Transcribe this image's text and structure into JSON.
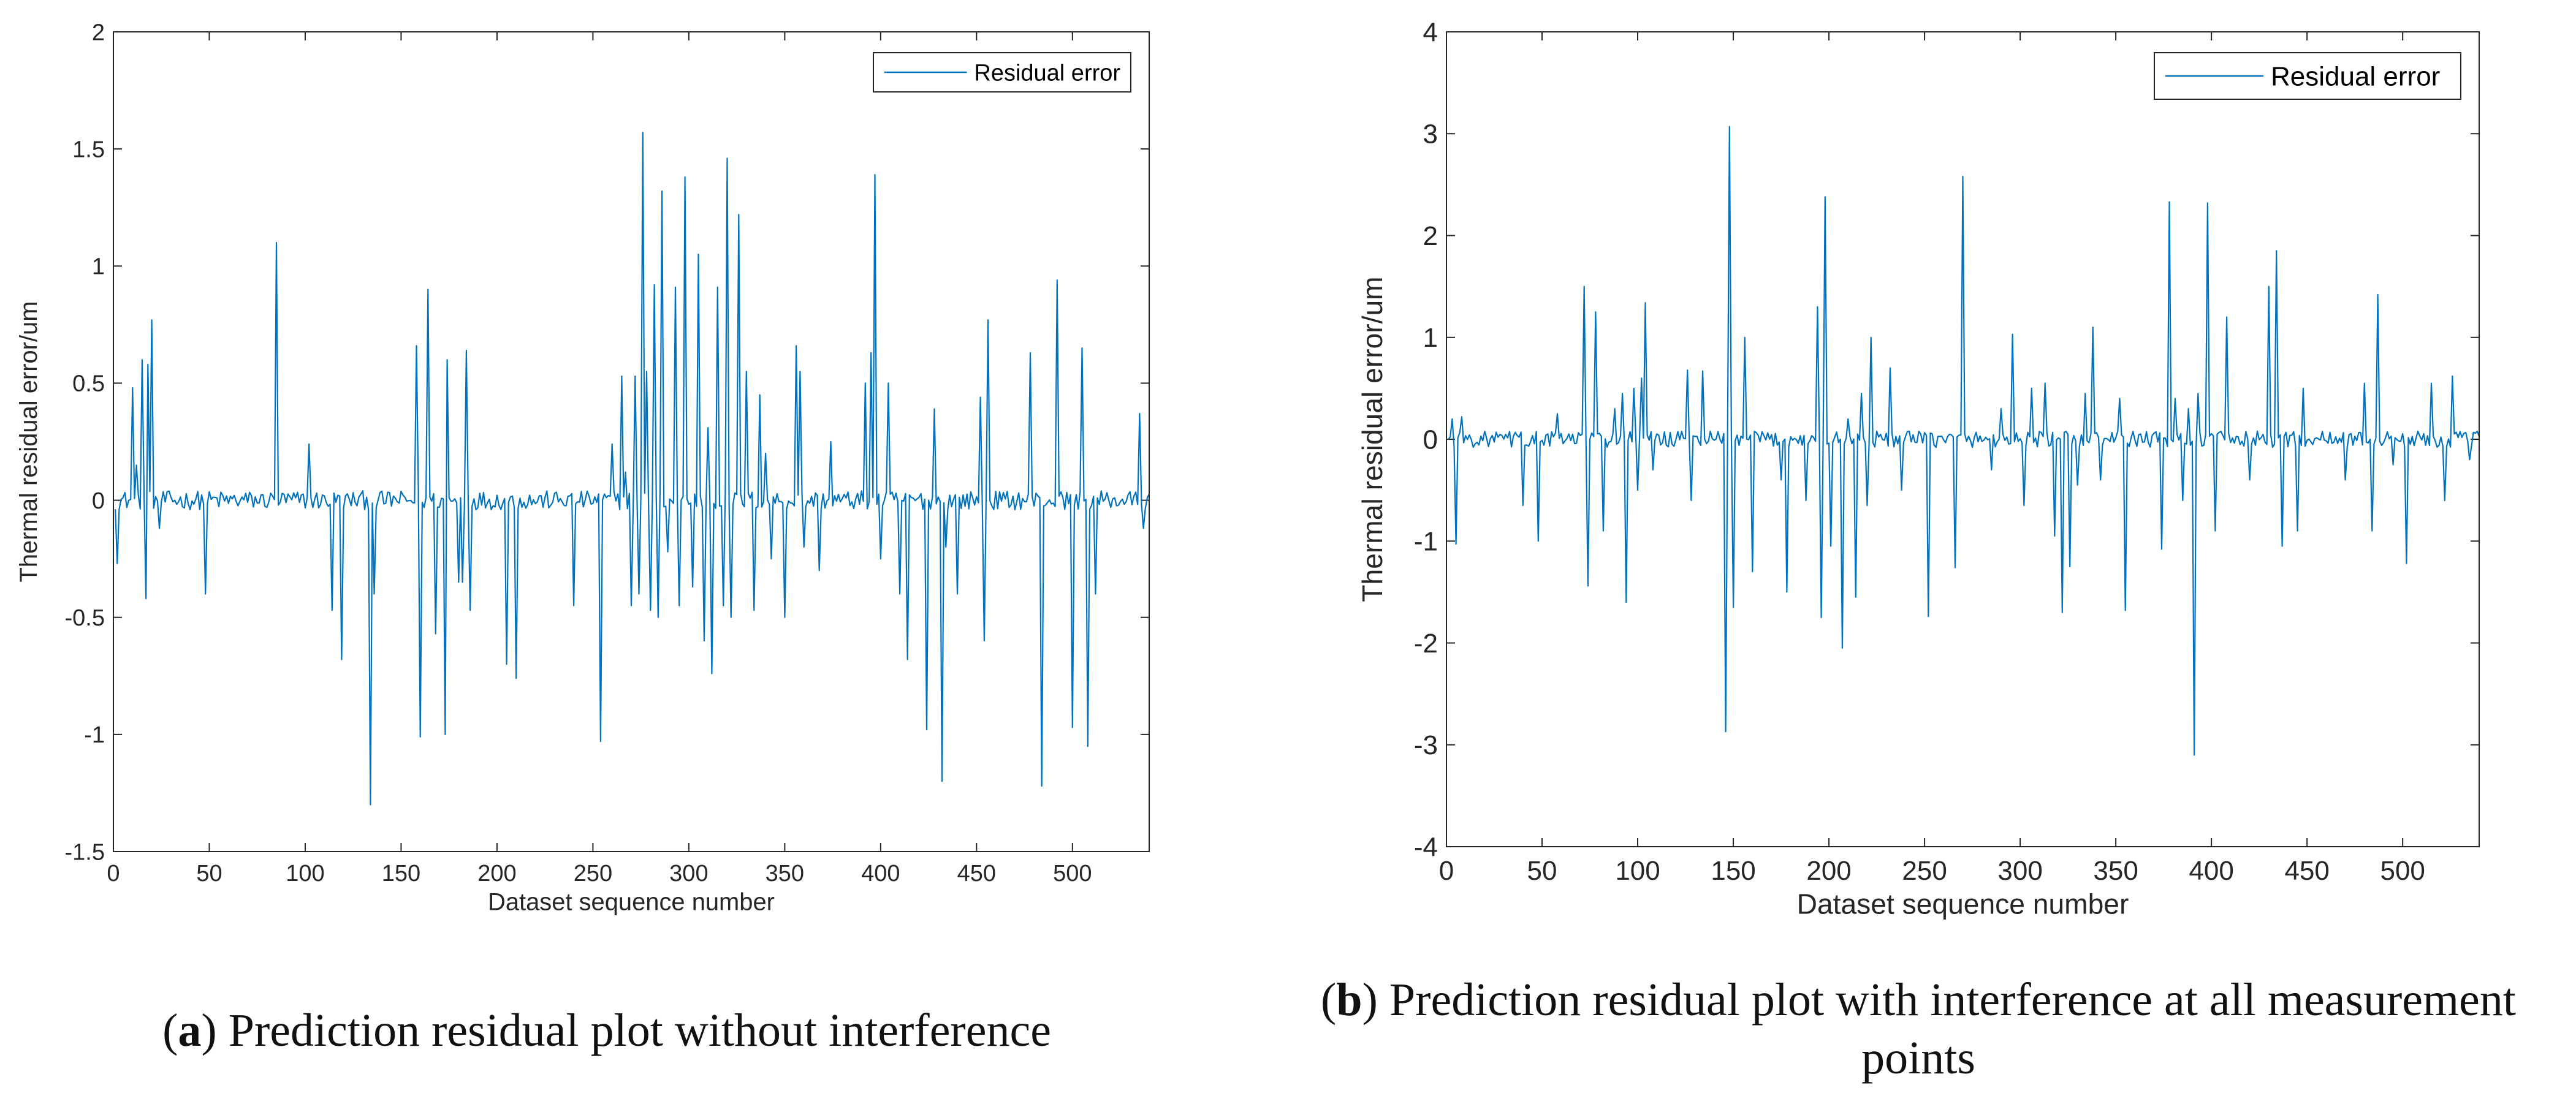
{
  "figures": [
    {
      "caption": {
        "letter": "a",
        "text": "Prediction residual plot without interference"
      }
    },
    {
      "caption": {
        "letter": "b",
        "text": "Prediction residual plot with interference at all measurement points"
      }
    }
  ],
  "colors": {
    "series": "#0072BD",
    "axis": "#262626",
    "background": "#ffffff"
  },
  "chart_data": [
    {
      "type": "line",
      "title": "",
      "xlabel": "Dataset sequence number",
      "ylabel": "Thermal residual error/um",
      "xlim": [
        0,
        540
      ],
      "ylim": [
        -1.5,
        2
      ],
      "xticks": [
        0,
        50,
        100,
        150,
        200,
        250,
        300,
        350,
        400,
        450,
        500
      ],
      "yticks": [
        -1.5,
        -1,
        -0.5,
        0,
        0.5,
        1,
        1.5,
        2
      ],
      "ytick_labels": [
        "-1.5",
        "-1",
        "-0.5",
        "0",
        "0.5",
        "1",
        "1.5",
        "2"
      ],
      "legend": {
        "label": "Residual error",
        "location": "top-right"
      },
      "baseline_noise": 0.04,
      "series": [
        {
          "name": "Residual error",
          "spikes": [
            [
              2,
              -0.27
            ],
            [
              10,
              0.48
            ],
            [
              12,
              0.15
            ],
            [
              15,
              0.6
            ],
            [
              17,
              -0.42
            ],
            [
              18,
              0.58
            ],
            [
              20,
              0.77
            ],
            [
              24,
              -0.12
            ],
            [
              48,
              -0.4
            ],
            [
              85,
              1.1
            ],
            [
              102,
              0.24
            ],
            [
              114,
              -0.47
            ],
            [
              119,
              -0.68
            ],
            [
              134,
              -1.3
            ],
            [
              136,
              -0.4
            ],
            [
              158,
              0.66
            ],
            [
              160,
              -1.01
            ],
            [
              164,
              0.9
            ],
            [
              168,
              -0.57
            ],
            [
              173,
              -1.0
            ],
            [
              174,
              0.6
            ],
            [
              180,
              -0.35
            ],
            [
              182,
              -0.35
            ],
            [
              184,
              0.64
            ],
            [
              186,
              -0.47
            ],
            [
              205,
              -0.7
            ],
            [
              210,
              -0.76
            ],
            [
              240,
              -0.45
            ],
            [
              254,
              -1.03
            ],
            [
              260,
              0.24
            ],
            [
              265,
              0.53
            ],
            [
              267,
              0.12
            ],
            [
              270,
              -0.45
            ],
            [
              272,
              0.53
            ],
            [
              274,
              -0.4
            ],
            [
              276,
              1.57
            ],
            [
              278,
              0.55
            ],
            [
              280,
              -0.47
            ],
            [
              282,
              0.92
            ],
            [
              284,
              -0.5
            ],
            [
              286,
              1.32
            ],
            [
              289,
              -0.22
            ],
            [
              293,
              0.91
            ],
            [
              295,
              -0.45
            ],
            [
              298,
              1.38
            ],
            [
              302,
              -0.37
            ],
            [
              305,
              1.05
            ],
            [
              308,
              -0.6
            ],
            [
              310,
              0.31
            ],
            [
              312,
              -0.74
            ],
            [
              315,
              0.91
            ],
            [
              318,
              -0.45
            ],
            [
              320,
              1.46
            ],
            [
              322,
              -0.5
            ],
            [
              326,
              1.22
            ],
            [
              330,
              0.55
            ],
            [
              334,
              -0.47
            ],
            [
              337,
              0.45
            ],
            [
              340,
              0.2
            ],
            [
              343,
              -0.25
            ],
            [
              350,
              -0.5
            ],
            [
              356,
              0.66
            ],
            [
              358,
              0.55
            ],
            [
              360,
              -0.2
            ],
            [
              368,
              -0.3
            ],
            [
              374,
              0.25
            ],
            [
              392,
              0.5
            ],
            [
              395,
              0.63
            ],
            [
              397,
              1.39
            ],
            [
              400,
              -0.25
            ],
            [
              404,
              0.5
            ],
            [
              410,
              -0.4
            ],
            [
              414,
              -0.68
            ],
            [
              424,
              -0.98
            ],
            [
              428,
              0.39
            ],
            [
              432,
              -1.2
            ],
            [
              434,
              -0.2
            ],
            [
              440,
              -0.4
            ],
            [
              452,
              0.44
            ],
            [
              454,
              -0.6
            ],
            [
              456,
              0.77
            ],
            [
              478,
              0.63
            ],
            [
              484,
              -1.22
            ],
            [
              492,
              0.94
            ],
            [
              500,
              -0.97
            ],
            [
              505,
              0.65
            ],
            [
              508,
              -1.05
            ],
            [
              512,
              -0.4
            ],
            [
              535,
              0.37
            ],
            [
              537,
              -0.12
            ]
          ]
        }
      ]
    },
    {
      "type": "line",
      "title": "",
      "xlabel": "Dataset sequence number",
      "ylabel": "Thermal residual error/um",
      "xlim": [
        0,
        540
      ],
      "ylim": [
        -4,
        4
      ],
      "xticks": [
        0,
        50,
        100,
        150,
        200,
        250,
        300,
        350,
        400,
        450,
        500
      ],
      "yticks": [
        -4,
        -3,
        -2,
        -1,
        0,
        1,
        2,
        3,
        4
      ],
      "ytick_labels": [
        "-4",
        "-3",
        "-2",
        "-1",
        "0",
        "1",
        "2",
        "3",
        "4"
      ],
      "legend": {
        "label": "Residual error",
        "location": "top-right"
      },
      "baseline_noise": 0.08,
      "series": [
        {
          "name": "Residual error",
          "spikes": [
            [
              3,
              0.2
            ],
            [
              5,
              -1.03
            ],
            [
              8,
              0.22
            ],
            [
              40,
              -0.65
            ],
            [
              48,
              -1.0
            ],
            [
              58,
              0.25
            ],
            [
              72,
              1.5
            ],
            [
              74,
              -1.44
            ],
            [
              78,
              1.25
            ],
            [
              82,
              -0.9
            ],
            [
              88,
              0.3
            ],
            [
              92,
              0.45
            ],
            [
              94,
              -1.6
            ],
            [
              98,
              0.5
            ],
            [
              100,
              -0.5
            ],
            [
              102,
              0.6
            ],
            [
              104,
              1.34
            ],
            [
              108,
              -0.3
            ],
            [
              126,
              0.68
            ],
            [
              128,
              -0.6
            ],
            [
              134,
              0.67
            ],
            [
              146,
              -2.87
            ],
            [
              148,
              3.07
            ],
            [
              150,
              -1.65
            ],
            [
              156,
              1.0
            ],
            [
              160,
              -1.3
            ],
            [
              175,
              -0.4
            ],
            [
              178,
              -1.5
            ],
            [
              188,
              -0.6
            ],
            [
              194,
              1.3
            ],
            [
              196,
              -1.75
            ],
            [
              198,
              2.38
            ],
            [
              201,
              -1.05
            ],
            [
              207,
              -2.05
            ],
            [
              210,
              0.2
            ],
            [
              214,
              -1.55
            ],
            [
              217,
              0.45
            ],
            [
              220,
              -0.65
            ],
            [
              222,
              1.0
            ],
            [
              232,
              0.7
            ],
            [
              238,
              -0.5
            ],
            [
              252,
              -1.74
            ],
            [
              266,
              -1.26
            ],
            [
              270,
              2.58
            ],
            [
              285,
              -0.3
            ],
            [
              290,
              0.3
            ],
            [
              296,
              1.03
            ],
            [
              302,
              -0.65
            ],
            [
              306,
              0.5
            ],
            [
              313,
              0.55
            ],
            [
              318,
              -0.95
            ],
            [
              322,
              -1.7
            ],
            [
              326,
              -1.25
            ],
            [
              330,
              -0.45
            ],
            [
              334,
              0.45
            ],
            [
              338,
              1.1
            ],
            [
              342,
              -0.4
            ],
            [
              352,
              0.4
            ],
            [
              355,
              -1.68
            ],
            [
              374,
              -1.08
            ],
            [
              378,
              2.33
            ],
            [
              381,
              0.4
            ],
            [
              385,
              -0.6
            ],
            [
              388,
              0.3
            ],
            [
              391,
              -3.1
            ],
            [
              393,
              0.45
            ],
            [
              398,
              2.32
            ],
            [
              402,
              -0.9
            ],
            [
              408,
              1.2
            ],
            [
              420,
              -0.4
            ],
            [
              430,
              1.5
            ],
            [
              434,
              1.85
            ],
            [
              437,
              -1.05
            ],
            [
              445,
              -0.9
            ],
            [
              448,
              0.5
            ],
            [
              470,
              -0.4
            ],
            [
              480,
              0.55
            ],
            [
              484,
              -0.9
            ],
            [
              487,
              1.42
            ],
            [
              495,
              -0.25
            ],
            [
              502,
              -1.22
            ],
            [
              515,
              0.55
            ],
            [
              522,
              -0.6
            ],
            [
              526,
              0.62
            ],
            [
              535,
              -0.2
            ]
          ]
        }
      ]
    }
  ]
}
